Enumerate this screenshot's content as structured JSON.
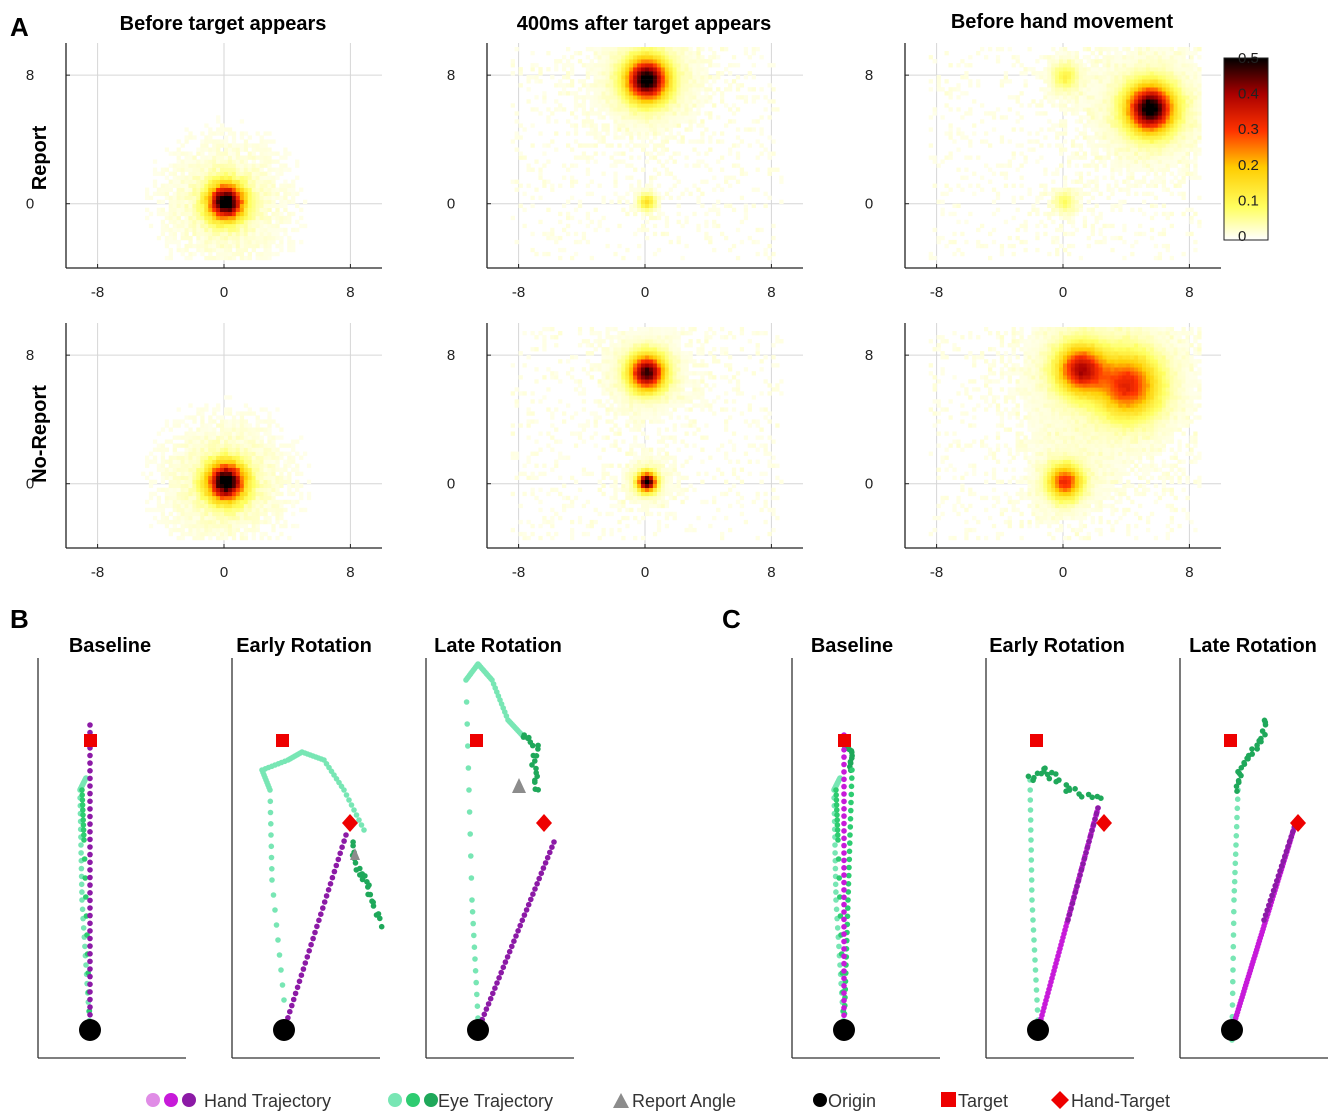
{
  "panel_labels": {
    "a": "A",
    "b": "B",
    "c": "C"
  },
  "colors": {
    "hand": [
      "#e08ce6",
      "#c71ad9",
      "#8c1aa6"
    ],
    "eye": [
      "#78e6b4",
      "#2ecc71",
      "#1fa85a"
    ],
    "report": "#8c8c8c",
    "origin": "#000000",
    "target": "#ee0000",
    "hand_target": "#ee0000",
    "grid": "#d6d6d6"
  },
  "chart_data": [
    {
      "type": "heatmap",
      "panel": "A",
      "col_titles": [
        "Before target appears",
        "400ms after target appears",
        "Before hand movement"
      ],
      "row_labels": [
        "Report",
        "No-Report"
      ],
      "xticks": [
        "-8",
        "0",
        "8"
      ],
      "yticks": [
        "8",
        "0"
      ],
      "xlim": [
        -10,
        10
      ],
      "ylim": [
        -4,
        10
      ],
      "colorbar": {
        "ticks": [
          "0.5",
          "0.4",
          "0.3",
          "0.2",
          "0.1",
          "0"
        ],
        "range": [
          0,
          0.5
        ]
      },
      "cells": [
        {
          "row": "Report",
          "col": "Before target appears",
          "blobs": [
            {
              "x": 0,
              "y": 0,
              "peak": 0.5
            }
          ]
        },
        {
          "row": "Report",
          "col": "400ms after target appears",
          "blobs": [
            {
              "x": 0,
              "y": 7.6,
              "peak": 0.5
            },
            {
              "x": 0,
              "y": 0,
              "peak": 0.15
            }
          ]
        },
        {
          "row": "Report",
          "col": "Before hand movement",
          "blobs": [
            {
              "x": 5.4,
              "y": 5.8,
              "peak": 0.5
            },
            {
              "x": 0,
              "y": 7.8,
              "peak": 0.1
            },
            {
              "x": 0,
              "y": 0,
              "peak": 0.08
            }
          ]
        },
        {
          "row": "No-Report",
          "col": "Before target appears",
          "blobs": [
            {
              "x": 0,
              "y": 0,
              "peak": 0.5
            }
          ]
        },
        {
          "row": "No-Report",
          "col": "400ms after target appears",
          "blobs": [
            {
              "x": 0,
              "y": 6.8,
              "peak": 0.45
            },
            {
              "x": 0,
              "y": 0,
              "peak": 0.5
            }
          ]
        },
        {
          "row": "No-Report",
          "col": "Before hand movement",
          "blobs": [
            {
              "x": 1,
              "y": 7,
              "peak": 0.35
            },
            {
              "x": 4,
              "y": 6,
              "peak": 0.3
            },
            {
              "x": 0,
              "y": 0,
              "peak": 0.3
            }
          ]
        }
      ]
    },
    {
      "type": "scatter",
      "panel": "B",
      "titles": [
        "Baseline",
        "Early Rotation",
        "Late Rotation"
      ]
    },
    {
      "type": "scatter",
      "panel": "C",
      "titles": [
        "Baseline",
        "Early Rotation",
        "Late Rotation"
      ]
    }
  ],
  "legend": [
    {
      "key": "hand",
      "label": "Hand Trajectory"
    },
    {
      "key": "eye",
      "label": "Eye Trajectory"
    },
    {
      "key": "report",
      "label": "Report Angle"
    },
    {
      "key": "origin",
      "label": "Origin"
    },
    {
      "key": "target",
      "label": "Target"
    },
    {
      "key": "hand_target",
      "label": "Hand-Target"
    }
  ]
}
